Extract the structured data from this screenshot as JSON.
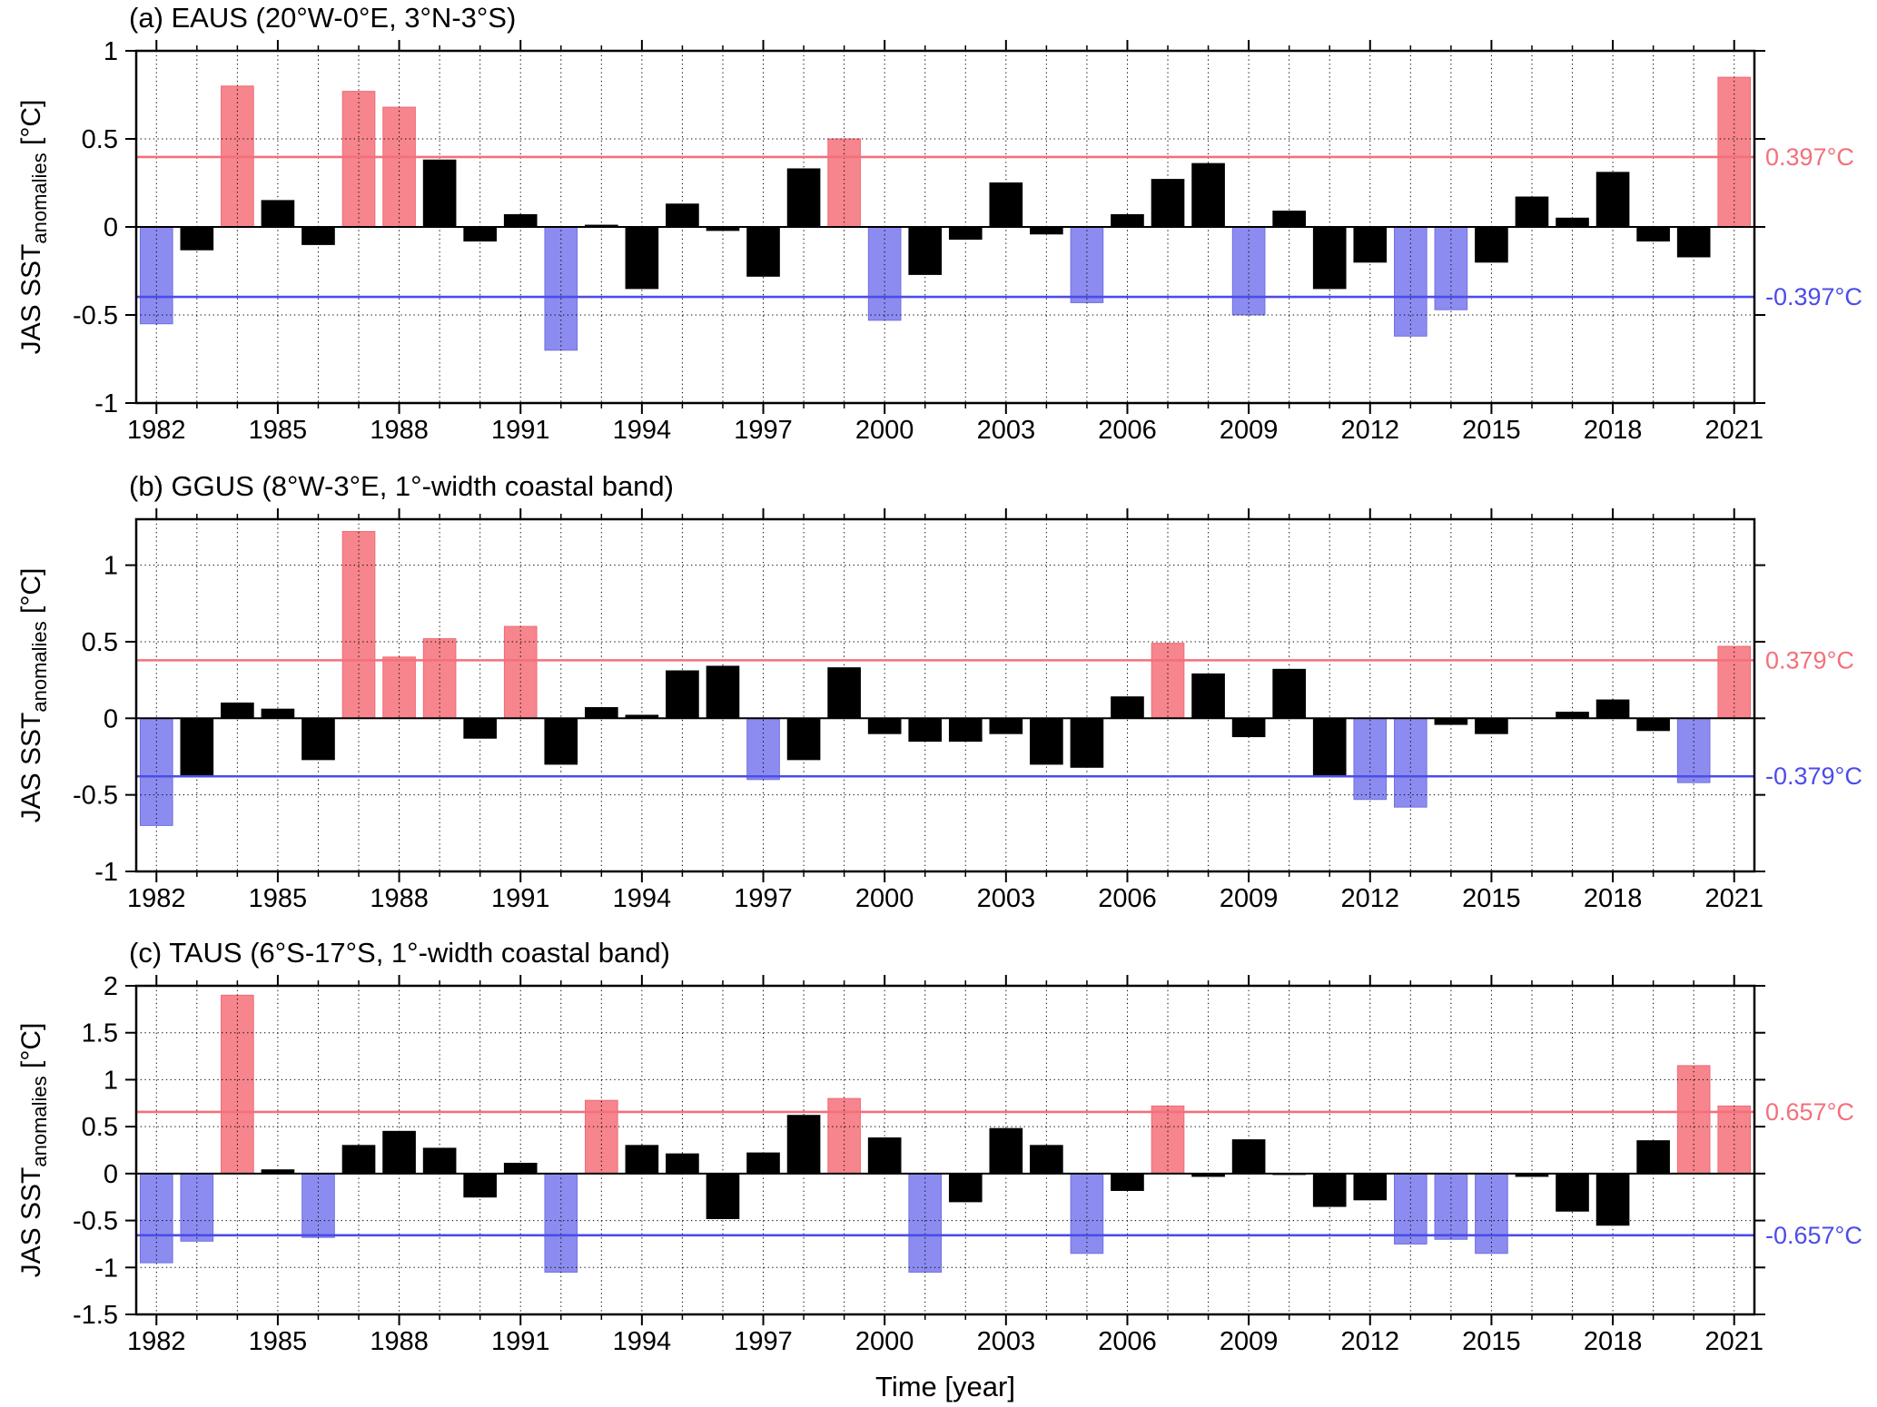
{
  "figure": {
    "xlabel": "Time [year]",
    "ylabel": {
      "main": "JAS SST",
      "sub": "anomalies",
      "units": " [°C]"
    }
  },
  "colors": {
    "positive_bar": "#F6858E",
    "positive_edge": "#EE6B76",
    "negative_bar": "#8C8CF0",
    "negative_edge": "#7070E2",
    "positive_line": "#F3707B",
    "negative_line": "#4C4CE8",
    "neutral_bar": "#000000",
    "axis": "#000000"
  },
  "chart_data": [
    {
      "id": "a",
      "type": "bar",
      "title": "(a) EAUS (20°W-0°E, 3°N-3°S)",
      "region": "EAUS",
      "year_start": 1982,
      "x_tick_labels": [
        1982,
        1985,
        1988,
        1991,
        1994,
        1997,
        2000,
        2003,
        2006,
        2009,
        2012,
        2015,
        2018,
        2021
      ],
      "ylim": [
        -1,
        1
      ],
      "yticks": [
        -1,
        -0.5,
        0,
        0.5,
        1
      ],
      "threshold": 0.397,
      "threshold_label_pos": "0.397°C",
      "threshold_label_neg": "-0.397°C",
      "values": [
        -0.55,
        -0.13,
        0.8,
        0.15,
        -0.1,
        0.77,
        0.68,
        0.38,
        -0.08,
        0.07,
        -0.7,
        0.01,
        -0.35,
        0.13,
        -0.02,
        -0.28,
        0.33,
        0.5,
        -0.53,
        -0.27,
        -0.07,
        0.25,
        -0.04,
        -0.43,
        0.07,
        0.27,
        0.36,
        -0.5,
        0.09,
        -0.35,
        -0.2,
        -0.62,
        -0.47,
        -0.2,
        0.17,
        0.05,
        0.31,
        -0.08,
        -0.17,
        0.85
      ]
    },
    {
      "id": "b",
      "type": "bar",
      "title": "(b) GGUS (8°W-3°E, 1°-width coastal band)",
      "region": "GGUS",
      "year_start": 1982,
      "x_tick_labels": [
        1982,
        1985,
        1988,
        1991,
        1994,
        1997,
        2000,
        2003,
        2006,
        2009,
        2012,
        2015,
        2018,
        2021
      ],
      "ylim": [
        -1,
        1.3
      ],
      "yticks": [
        -1,
        -0.5,
        0,
        0.5,
        1
      ],
      "threshold": 0.379,
      "threshold_label_pos": "0.379°C",
      "threshold_label_neg": "-0.379°C",
      "values": [
        -0.7,
        -0.37,
        0.1,
        0.06,
        -0.27,
        1.22,
        0.4,
        0.52,
        -0.13,
        0.6,
        -0.3,
        0.07,
        0.02,
        0.31,
        0.34,
        -0.4,
        -0.27,
        0.33,
        -0.1,
        -0.15,
        -0.15,
        -0.1,
        -0.3,
        -0.32,
        0.14,
        0.49,
        0.29,
        -0.12,
        0.32,
        -0.37,
        -0.53,
        -0.58,
        -0.04,
        -0.1,
        0.0,
        0.04,
        0.12,
        -0.08,
        -0.42,
        0.47
      ]
    },
    {
      "id": "c",
      "type": "bar",
      "title": "(c) TAUS (6°S-17°S, 1°-width coastal band)",
      "region": "TAUS",
      "year_start": 1982,
      "x_tick_labels": [
        1982,
        1985,
        1988,
        1991,
        1994,
        1997,
        2000,
        2003,
        2006,
        2009,
        2012,
        2015,
        2018,
        2021
      ],
      "ylim": [
        -1.5,
        2
      ],
      "yticks": [
        -1.5,
        -1,
        -0.5,
        0,
        0.5,
        1,
        1.5,
        2
      ],
      "threshold": 0.657,
      "threshold_label_pos": "0.657°C",
      "threshold_label_neg": "-0.657°C",
      "values": [
        -0.95,
        -0.72,
        1.9,
        0.04,
        -0.68,
        0.3,
        0.45,
        0.27,
        -0.25,
        0.11,
        -1.05,
        0.78,
        0.3,
        0.21,
        -0.48,
        0.22,
        0.62,
        0.8,
        0.38,
        -1.05,
        -0.3,
        0.48,
        0.3,
        -0.85,
        -0.18,
        0.72,
        -0.03,
        0.36,
        -0.01,
        -0.35,
        -0.28,
        -0.75,
        -0.7,
        -0.85,
        -0.03,
        -0.4,
        -0.55,
        0.35,
        1.15,
        0.72
      ]
    }
  ]
}
